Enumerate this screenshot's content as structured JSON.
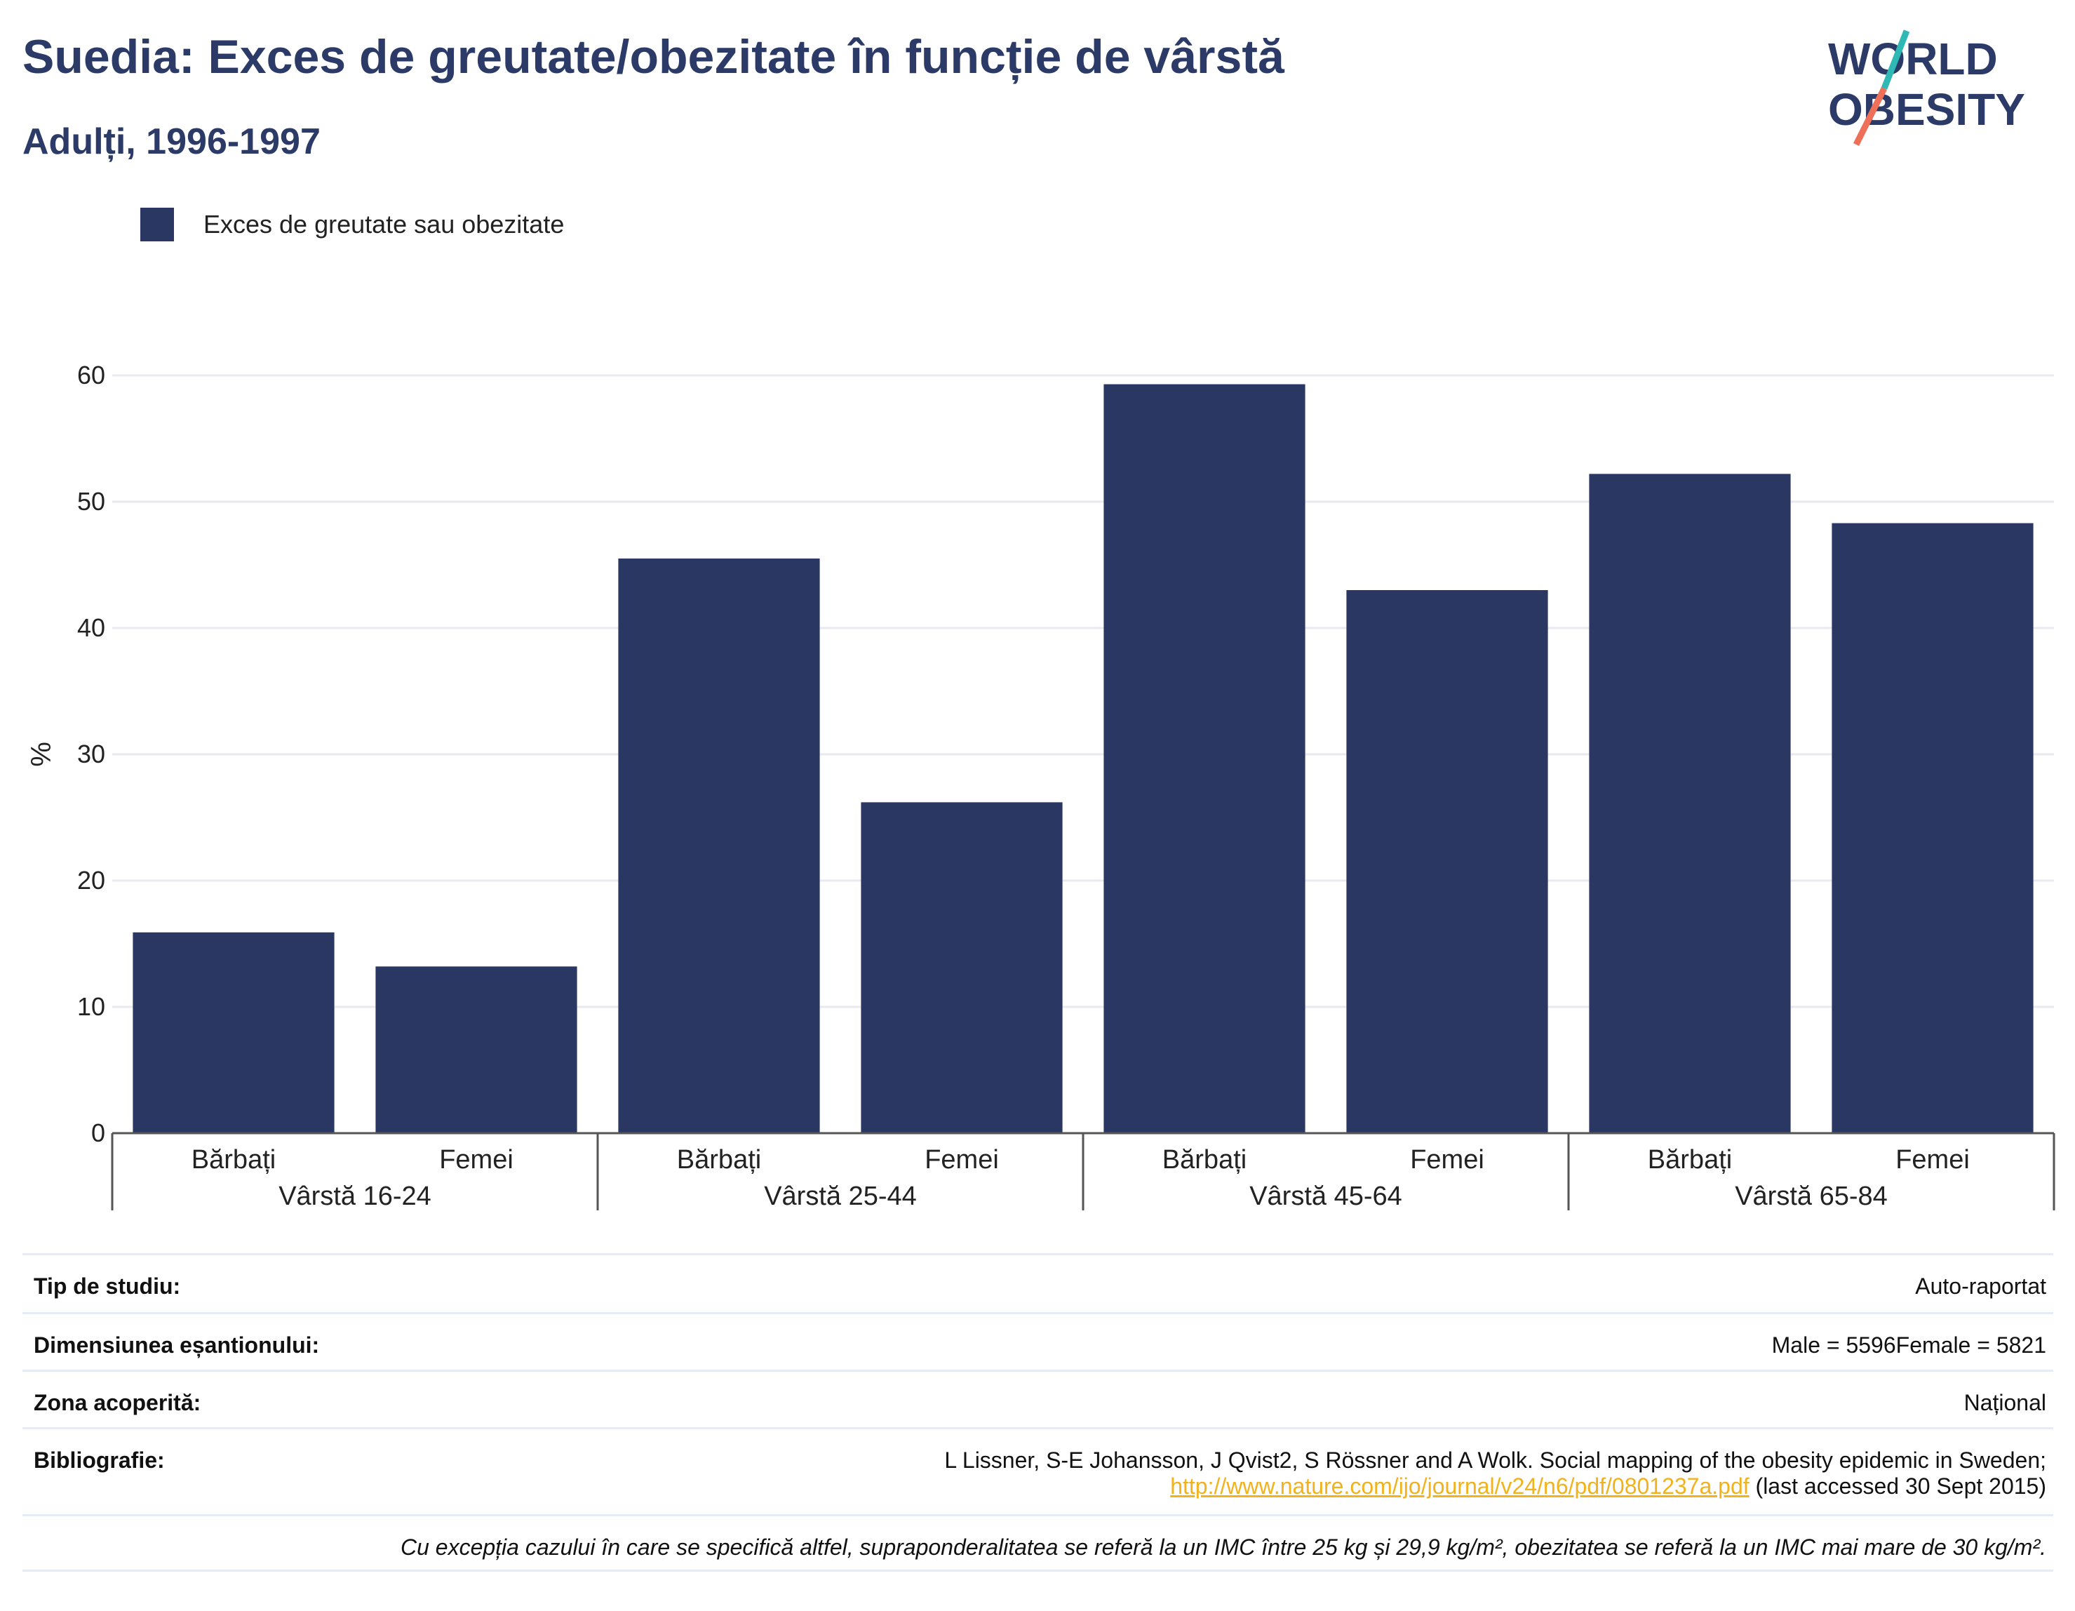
{
  "title": "Suedia: Exces de greutate/obezitate în funcție de vârstă",
  "subtitle": "Adulți, 1996-1997",
  "logo": {
    "line1": "WORLD",
    "line2": "OBESITY",
    "accent_teal": "#2fb8b4",
    "accent_coral": "#ef7059",
    "text_color": "#2b3a67"
  },
  "legend": {
    "label": "Exces de greutate sau obezitate",
    "color": "#2b3763"
  },
  "chart_data": {
    "type": "bar",
    "title": "Suedia: Exces de greutate/obezitate în funcție de vârstă",
    "subtitle": "Adulți, 1996-1997",
    "ylabel": "%",
    "ylim": [
      0,
      60
    ],
    "yticks": [
      0,
      10,
      20,
      30,
      40,
      50,
      60
    ],
    "grid": true,
    "legend_position": "top-left",
    "groups": [
      "Vârstă 16-24",
      "Vârstă 25-44",
      "Vârstă 45-64",
      "Vârstă 65-84"
    ],
    "categories": [
      "Bărbați",
      "Femei",
      "Bărbați",
      "Femei",
      "Bărbați",
      "Femei",
      "Bărbați",
      "Femei"
    ],
    "series": [
      {
        "name": "Exces de greutate sau obezitate",
        "color": "#2b3763",
        "values": [
          15.9,
          13.2,
          45.5,
          26.2,
          59.3,
          43.0,
          52.2,
          48.3
        ]
      }
    ]
  },
  "info": {
    "rows": [
      {
        "label": "Tip de studiu:",
        "value": "Auto-raportat"
      },
      {
        "label": "Dimensiunea eșantionului:",
        "value": "Male = 5596Female = 5821"
      },
      {
        "label": "Zona acoperită:",
        "value": "Național"
      }
    ],
    "bibliography": {
      "label": "Bibliografie:",
      "text": "L Lissner, S-E Johansson, J Qvist2, S Rössner and A Wolk. Social mapping of the obesity epidemic in Sweden;",
      "link": "http://www.nature.com/ijo/journal/v24/n6/pdf/0801237a.pdf",
      "suffix": " (last accessed 30 Sept 2015)"
    },
    "note": "Cu excepția cazului în care se specifică altfel, supraponderalitatea se referă la un IMC între 25 kg și 29,9 kg/m², obezitatea se referă la un IMC mai mare de 30 kg/m²."
  }
}
